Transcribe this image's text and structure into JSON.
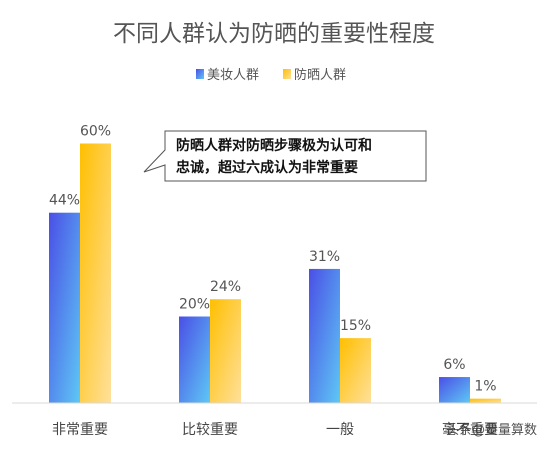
{
  "chart_data": {
    "type": "bar",
    "title": "不同人群认为防晒的重要性程度",
    "categories": [
      "非常重要",
      "比较重要",
      "一般",
      "毫不重要"
    ],
    "series": [
      {
        "name": "美妆人群",
        "values": [
          44,
          20,
          31,
          6
        ],
        "labels": [
          "44%",
          "20%",
          "31%",
          "6%"
        ],
        "color": "#4f5ce8"
      },
      {
        "name": "防晒人群",
        "values": [
          60,
          24,
          15,
          1
        ],
        "labels": [
          "60%",
          "24%",
          "15%",
          "1%"
        ],
        "color": "#ffc20e"
      }
    ],
    "ylim": [
      0,
      70
    ],
    "grid": false,
    "legend": "top-center",
    "annotation": {
      "lines": [
        "防晒人群对防晒步骤极为认可和",
        "忠诚，超过六成认为非常重要"
      ]
    }
  },
  "watermark": "头条@量量算数"
}
